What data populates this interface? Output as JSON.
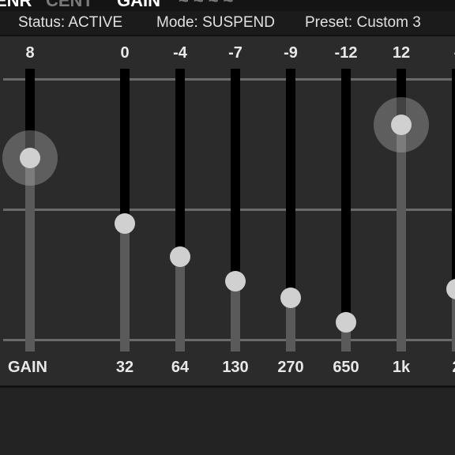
{
  "tabs": [
    "ENR",
    "CENT",
    "GAIN",
    "~~~~"
  ],
  "status": {
    "status_text": "Status: ACTIVE",
    "mode_text": "Mode: SUSPEND",
    "preset_text": "Preset: Custom 3"
  },
  "equalizer": {
    "range": [
      -15,
      15
    ],
    "gain_label": "GAIN",
    "bands": [
      {
        "label": "",
        "value": 8,
        "value_text": "8",
        "active": true
      },
      {
        "label": "32",
        "value": 0,
        "value_text": "0",
        "active": false
      },
      {
        "label": "64",
        "value": -4,
        "value_text": "-4",
        "active": false
      },
      {
        "label": "130",
        "value": -7,
        "value_text": "-7",
        "active": false
      },
      {
        "label": "270",
        "value": -9,
        "value_text": "-9",
        "active": false
      },
      {
        "label": "650",
        "value": -12,
        "value_text": "-12",
        "active": false
      },
      {
        "label": "1k",
        "value": 12,
        "value_text": "12",
        "active": true
      },
      {
        "label": "2",
        "value": -8,
        "value_text": "-",
        "active": false
      }
    ]
  },
  "colors": {
    "background": "#232323",
    "panel": "#2b2b2b",
    "thumb": "#d0d0d0",
    "track": "#000000",
    "fill": "#5a5a5a"
  }
}
